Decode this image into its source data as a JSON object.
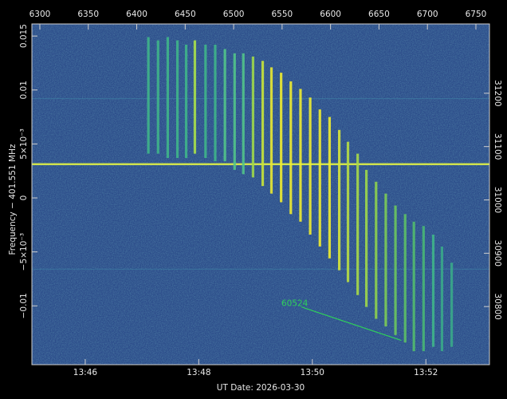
{
  "chart_data": {
    "type": "spectrogram",
    "xlabel": "UT Date: 2026-03-30",
    "ylabel": "Frequency − 401.551 MHz",
    "xlim": [
      825.06,
      833.12
    ],
    "xticks": [
      {
        "value": 826,
        "label": "13:46"
      },
      {
        "value": 828,
        "label": "13:48"
      },
      {
        "value": 830,
        "label": "13:50"
      },
      {
        "value": 832,
        "label": "13:52"
      }
    ],
    "x2lim": [
      6291.8,
      6764
    ],
    "x2ticks": [
      6300,
      6350,
      6400,
      6450,
      6500,
      6550,
      6600,
      6650,
      6700,
      6750
    ],
    "ylim": [
      -0.01545,
      0.01612
    ],
    "yticks": [
      0.015,
      0.01,
      {
        "value": 0.005,
        "label": "5×10⁻³"
      },
      0,
      {
        "value": -0.005,
        "label": "−5×10⁻³"
      },
      {
        "value": -0.01,
        "label": "−0.01"
      }
    ],
    "y2lim": [
      30691,
      31330
    ],
    "y2ticks": [
      31200,
      31100,
      31000,
      30900,
      30800
    ],
    "hlines": {
      "y": [
        0.00313,
        0.0092,
        -0.0066
      ],
      "color": [
        "#d8ea4a",
        "#3f86a8",
        "#3f86a8"
      ]
    },
    "streaks": {
      "x": [
        6412,
        6422,
        6432,
        6442,
        6451,
        6460,
        6471,
        6481,
        6491,
        6501,
        6510,
        6520,
        6530,
        6539,
        6549,
        6559,
        6569,
        6579,
        6589,
        6599,
        6609,
        6618,
        6628,
        6637,
        6647,
        6657,
        6667,
        6677,
        6686,
        6696,
        6706,
        6715,
        6725
      ],
      "top": [
        0.0149,
        0.0146,
        0.0149,
        0.0146,
        0.0142,
        0.0146,
        0.0142,
        0.0142,
        0.0138,
        0.0134,
        0.0134,
        0.0131,
        0.0127,
        0.0121,
        0.0116,
        0.0108,
        0.0101,
        0.0093,
        0.0082,
        0.0075,
        0.0063,
        0.0052,
        0.0041,
        0.0026,
        0.0015,
        0.0004,
        -0.0007,
        -0.0015,
        -0.0022,
        -0.0026,
        -0.0034,
        -0.0045,
        -0.006
      ],
      "bottom": [
        0.0041,
        0.0041,
        0.0037,
        0.0037,
        0.0037,
        0.0041,
        0.0037,
        0.0034,
        0.0034,
        0.0026,
        0.0022,
        0.0019,
        0.0011,
        0.0004,
        -0.0004,
        -0.0015,
        -0.0022,
        -0.0034,
        -0.0045,
        -0.0056,
        -0.0067,
        -0.0078,
        -0.009,
        -0.0101,
        -0.0112,
        -0.0119,
        -0.0127,
        -0.0134,
        -0.0142,
        -0.0142,
        -0.0138,
        -0.0142,
        -0.0138
      ],
      "color": [
        "#3fb58a",
        "#3fb58a",
        "#3fb58a",
        "#3fb58a",
        "#3fb58a",
        "#a8e04a",
        "#3fb58a",
        "#3fb58a",
        "#52c48a",
        "#52c48a",
        "#52c48a",
        "#9fd84a",
        "#c8e43a",
        "#e8e832",
        "#f0ec30",
        "#f0ec30",
        "#f0ec30",
        "#f0ec30",
        "#f0ec30",
        "#f0ec30",
        "#d8e63a",
        "#b8de44",
        "#a8da48",
        "#9fd84a",
        "#8ed24e",
        "#7ccc56",
        "#6cc65e",
        "#5cc066",
        "#52bb6e",
        "#48b676",
        "#3fb58a",
        "#3aa88a",
        "#3aa88a"
      ]
    },
    "annotation": {
      "text": "60524",
      "x": 6563,
      "y": -0.00978,
      "line_x": [
        6570,
        6673
      ],
      "line_y": [
        -0.0101,
        -0.0132
      ],
      "color": "#2ed15a"
    }
  }
}
